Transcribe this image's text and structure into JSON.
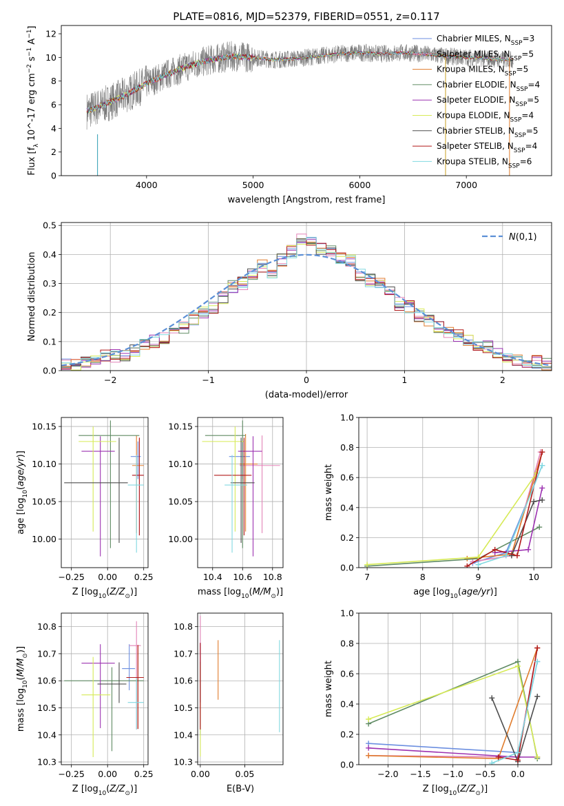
{
  "figure": {
    "title": "PLATE=0816, MJD=52379, FIBERID=0551, z=0.117"
  },
  "legend_labels": [
    "Chabrier MILES, NSSP=3",
    "Salpeter MILES, NSSP=5",
    "Kroupa MILES, NSSP=5",
    "Chabrier ELODIE, NSSP=4",
    "Salpeter ELODIE, NSSP=5",
    "Kroupa ELODIE, NSSP=4",
    "Chabrier STELIB, NSSP=5",
    "Salpeter STELIB, NSSP=4",
    "Kroupa STELIB, NSSP=6"
  ],
  "series_colors": [
    "#6b8ee0",
    "#e383b8",
    "#e07b2b",
    "#5e8a62",
    "#9b30b0",
    "#d6ea55",
    "#4d4d4d",
    "#b01818",
    "#80d8e0"
  ],
  "chart_data": [
    {
      "id": "spectrum",
      "type": "line",
      "xlabel": "wavelength [Angstrom, rest frame]",
      "ylabel": "Flux [f_λ 10^-17 erg cm^-2 s^-1 A^-1]",
      "xlim": [
        3200,
        7800
      ],
      "ylim": [
        0,
        12.7
      ],
      "xticks": [
        4000,
        5000,
        6000,
        7000
      ],
      "yticks": [
        0,
        2,
        4,
        6,
        8,
        10,
        12
      ],
      "grid": false,
      "legend_position": "right",
      "data_envelope": {
        "x": [
          3450,
          3600,
          3800,
          4000,
          4200,
          4400,
          4600,
          4800,
          5000,
          5200,
          5400,
          5600,
          5800,
          6000,
          6200,
          6400,
          6600,
          6800,
          7000,
          7200,
          7400
        ],
        "y": [
          5.5,
          6.0,
          6.8,
          7.8,
          8.6,
          9.3,
          9.8,
          10.1,
          10.0,
          9.8,
          9.9,
          10.1,
          10.3,
          10.4,
          10.3,
          10.4,
          10.3,
          10.1,
          10.0,
          9.9,
          9.8
        ]
      }
    },
    {
      "id": "residuals",
      "type": "line",
      "xlabel": "(data-model)/error",
      "ylabel": "Normed distribution",
      "xlim": [
        -2.5,
        2.5
      ],
      "ylim": [
        0,
        0.51
      ],
      "xticks": [
        -2,
        -1,
        0,
        1,
        2
      ],
      "yticks": [
        0.0,
        0.1,
        0.2,
        0.3,
        0.4,
        0.5
      ],
      "grid": true,
      "legend_position": "top-right",
      "reference_label": "N(0,1)",
      "bin_centers": [
        -2.45,
        -2.35,
        -2.25,
        -2.15,
        -2.05,
        -1.95,
        -1.85,
        -1.75,
        -1.65,
        -1.55,
        -1.45,
        -1.35,
        -1.25,
        -1.15,
        -1.05,
        -0.95,
        -0.85,
        -0.75,
        -0.65,
        -0.55,
        -0.45,
        -0.35,
        -0.25,
        -0.15,
        -0.05,
        0.05,
        0.15,
        0.25,
        0.35,
        0.45,
        0.55,
        0.65,
        0.75,
        0.85,
        0.95,
        1.05,
        1.15,
        1.25,
        1.35,
        1.45,
        1.55,
        1.65,
        1.75,
        1.85,
        1.95,
        2.05,
        2.15,
        2.25,
        2.35,
        2.45
      ],
      "bin_values": [
        0.02,
        0.02,
        0.03,
        0.04,
        0.05,
        0.05,
        0.05,
        0.07,
        0.09,
        0.1,
        0.11,
        0.13,
        0.15,
        0.18,
        0.2,
        0.22,
        0.25,
        0.29,
        0.3,
        0.33,
        0.36,
        0.34,
        0.38,
        0.41,
        0.45,
        0.44,
        0.42,
        0.41,
        0.39,
        0.38,
        0.33,
        0.31,
        0.3,
        0.27,
        0.23,
        0.22,
        0.19,
        0.17,
        0.15,
        0.13,
        0.12,
        0.1,
        0.09,
        0.08,
        0.06,
        0.05,
        0.04,
        0.03,
        0.03,
        0.02
      ]
    },
    {
      "id": "age_vs_Z",
      "type": "scatter",
      "xlabel": "Z [log10(Z/Z⊙)]",
      "ylabel": "age  [log10(age/yr)]",
      "xlim": [
        -0.32,
        0.28
      ],
      "ylim": [
        9.962,
        10.162
      ],
      "xticks": [
        -0.25,
        0.0,
        0.25
      ],
      "xticklabels": [
        "−0.25",
        "0.00",
        "0.25"
      ],
      "yticks": [
        10.0,
        10.05,
        10.1,
        10.15
      ],
      "yticklabels": [
        "10.00",
        "10.05",
        "10.10",
        "10.15"
      ],
      "grid": true,
      "points": [
        {
          "x": 0.21,
          "y": 10.11,
          "xerr": [
            0.05,
            0.02
          ],
          "yerr": [
            0.03,
            0.02
          ]
        },
        {
          "x": 0.22,
          "y": 10.085,
          "xerr": [
            0.05,
            0.03
          ],
          "yerr": [
            0.08,
            0.05
          ]
        },
        {
          "x": 0.2,
          "y": 10.098,
          "xerr": [
            0.03,
            0.05
          ],
          "yerr": [
            0.09,
            0.04
          ]
        },
        {
          "x": 0.02,
          "y": 10.138,
          "xerr": [
            0.22,
            0.2
          ],
          "yerr": [
            0.15,
            0.02
          ]
        },
        {
          "x": -0.05,
          "y": 10.117,
          "xerr": [
            0.13,
            0.1
          ],
          "yerr": [
            0.14,
            0.02
          ]
        },
        {
          "x": -0.1,
          "y": 10.13,
          "xerr": [
            0.1,
            0.16
          ],
          "yerr": [
            0.12,
            0.02
          ]
        },
        {
          "x": 0.08,
          "y": 10.075,
          "xerr": [
            0.38,
            0.06
          ],
          "yerr": [
            0.08,
            0.06
          ]
        },
        {
          "x": 0.22,
          "y": 10.085,
          "xerr": [
            0.05,
            0.03
          ],
          "yerr": [
            0.08,
            0.05
          ]
        },
        {
          "x": 0.2,
          "y": 10.072,
          "xerr": [
            0.06,
            0.05
          ],
          "yerr": [
            0.09,
            0.04
          ]
        }
      ]
    },
    {
      "id": "age_vs_mass",
      "type": "scatter",
      "xlabel": "mass [log10(M/M⊙)]",
      "ylabel": "",
      "xlim": [
        10.3,
        10.87
      ],
      "ylim": [
        9.962,
        10.162
      ],
      "xticks": [
        10.4,
        10.6,
        10.8
      ],
      "xticklabels": [
        "10.4",
        "10.6",
        "10.8"
      ],
      "yticks": [
        10.0,
        10.05,
        10.1,
        10.15
      ],
      "yticklabels": [
        "10.00",
        "10.05",
        "10.10",
        "10.15"
      ],
      "grid": true,
      "points": [
        {
          "x": 10.6,
          "y": 10.11,
          "xerr": [
            0.09,
            0.05
          ],
          "yerr": [
            0.03,
            0.02
          ]
        },
        {
          "x": 10.73,
          "y": 10.098,
          "xerr": [
            0.15,
            0.12
          ],
          "yerr": [
            0.09,
            0.04
          ]
        },
        {
          "x": 10.62,
          "y": 10.1,
          "xerr": [
            0.04,
            0.08
          ],
          "yerr": [
            0.09,
            0.04
          ]
        },
        {
          "x": 10.6,
          "y": 10.138,
          "xerr": [
            0.25,
            0.02
          ],
          "yerr": [
            0.15,
            0.02
          ]
        },
        {
          "x": 10.67,
          "y": 10.117,
          "xerr": [
            0.1,
            0.06
          ],
          "yerr": [
            0.14,
            0.02
          ]
        },
        {
          "x": 10.55,
          "y": 10.13,
          "xerr": [
            0.22,
            0.06
          ],
          "yerr": [
            0.12,
            0.02
          ]
        },
        {
          "x": 10.59,
          "y": 10.075,
          "xerr": [
            0.07,
            0.09
          ],
          "yerr": [
            0.08,
            0.06
          ]
        },
        {
          "x": 10.61,
          "y": 10.085,
          "xerr": [
            0.2,
            0.05
          ],
          "yerr": [
            0.08,
            0.05
          ]
        },
        {
          "x": 10.53,
          "y": 10.072,
          "xerr": [
            0.05,
            0.1
          ],
          "yerr": [
            0.09,
            0.04
          ]
        }
      ]
    },
    {
      "id": "weight_vs_age",
      "type": "line",
      "xlabel": "age  [log10(age/yr)]",
      "ylabel": "mass weight",
      "xlim": [
        6.85,
        10.32
      ],
      "ylim": [
        0,
        1.0
      ],
      "xticks": [
        7,
        8,
        9,
        10
      ],
      "yticks": [
        0.0,
        0.2,
        0.4,
        0.6,
        0.8,
        1.0
      ],
      "grid": true,
      "series_points": [
        {
          "x": [
            8.9,
            9.5,
            10.15
          ],
          "y": [
            0.03,
            0.1,
            0.68
          ]
        },
        {
          "x": [
            8.9,
            9.6,
            10.12
          ],
          "y": [
            0.04,
            0.08,
            0.77
          ]
        },
        {
          "x": [
            8.8,
            9.6,
            10.15
          ],
          "y": [
            0.06,
            0.09,
            0.77
          ]
        },
        {
          "x": [
            7.0,
            9.0,
            10.1
          ],
          "y": [
            0.01,
            0.06,
            0.27
          ]
        },
        {
          "x": [
            9.3,
            9.9,
            10.15
          ],
          "y": [
            0.1,
            0.12,
            0.53
          ]
        },
        {
          "x": [
            7.0,
            9.0,
            10.05
          ],
          "y": [
            0.02,
            0.07,
            0.63
          ]
        },
        {
          "x": [
            9.6,
            10.0,
            10.15
          ],
          "y": [
            0.08,
            0.44,
            0.45
          ]
        },
        {
          "x": [
            8.8,
            9.3,
            9.7,
            10.15
          ],
          "y": [
            0.01,
            0.12,
            0.08,
            0.77
          ]
        },
        {
          "x": [
            9.0,
            9.5,
            10.15
          ],
          "y": [
            0.02,
            0.08,
            0.68
          ]
        }
      ]
    },
    {
      "id": "mass_vs_Z",
      "type": "scatter",
      "xlabel": "Z [log10(Z/Z⊙)]",
      "ylabel": "mass [log10(M/M⊙)]",
      "xlim": [
        -0.32,
        0.28
      ],
      "ylim": [
        10.29,
        10.85
      ],
      "xticks": [
        -0.25,
        0.0,
        0.25
      ],
      "xticklabels": [
        "−0.25",
        "0.00",
        "0.25"
      ],
      "yticks": [
        10.3,
        10.4,
        10.5,
        10.6,
        10.7,
        10.8
      ],
      "yticklabels": [
        "10.3",
        "10.4",
        "10.5",
        "10.6",
        "10.7",
        "10.8"
      ],
      "grid": true,
      "points": [
        {
          "x": 0.15,
          "y": 10.645,
          "xerr": [
            0.05,
            0.04
          ],
          "yerr": [
            0.08,
            0.09
          ]
        },
        {
          "x": 0.2,
          "y": 10.73,
          "xerr": [
            0.05,
            0.03
          ],
          "yerr": [
            0.31,
            0.09
          ]
        },
        {
          "x": 0.21,
          "y": 10.612,
          "xerr": [
            0.08,
            0.04
          ],
          "yerr": [
            0.19,
            0.12
          ]
        },
        {
          "x": 0.03,
          "y": 10.6,
          "xerr": [
            0.33,
            0.22
          ],
          "yerr": [
            0.26,
            0.05
          ]
        },
        {
          "x": -0.05,
          "y": 10.665,
          "xerr": [
            0.13,
            0.1
          ],
          "yerr": [
            0.24,
            0.07
          ]
        },
        {
          "x": -0.1,
          "y": 10.548,
          "xerr": [
            0.08,
            0.12
          ],
          "yerr": [
            0.23,
            0.14
          ]
        },
        {
          "x": 0.08,
          "y": 10.588,
          "xerr": [
            0.15,
            0.05
          ],
          "yerr": [
            0.07,
            0.08
          ]
        },
        {
          "x": 0.21,
          "y": 10.612,
          "xerr": [
            0.08,
            0.04
          ],
          "yerr": [
            0.19,
            0.12
          ]
        },
        {
          "x": 0.2,
          "y": 10.52,
          "xerr": [
            0.06,
            0.05
          ],
          "yerr": [
            0.1,
            0.09
          ]
        }
      ]
    },
    {
      "id": "mass_vs_EBV",
      "type": "scatter",
      "xlabel": "E(B-V)",
      "ylabel": "",
      "xlim": [
        -0.003,
        0.093
      ],
      "ylim": [
        10.29,
        10.85
      ],
      "xticks": [
        0.0,
        0.05
      ],
      "xticklabels": [
        "0.00",
        "0.05"
      ],
      "yticks": [
        10.3,
        10.4,
        10.5,
        10.6,
        10.7,
        10.8
      ],
      "yticklabels": [
        "10.3",
        "10.4",
        "10.5",
        "10.6",
        "10.7",
        "10.8"
      ],
      "grid": true,
      "points": [
        {
          "x": 0.0,
          "y": 10.64,
          "xerr": [
            0,
            0
          ],
          "yerr": [
            0.24,
            0.1
          ]
        },
        {
          "x": 0.0,
          "y": 10.73,
          "xerr": [
            0,
            0
          ],
          "yerr": [
            0.25,
            0.11
          ]
        },
        {
          "x": 0.02,
          "y": 10.64,
          "xerr": [
            0,
            0
          ],
          "yerr": [
            0.11,
            0.11
          ]
        },
        {
          "x": 0.0,
          "y": 10.6,
          "xerr": [
            0,
            0
          ],
          "yerr": [
            0.18,
            0.05
          ]
        },
        {
          "x": 0.0,
          "y": 10.67,
          "xerr": [
            0,
            0
          ],
          "yerr": [
            0.24,
            0.07
          ]
        },
        {
          "x": 0.0,
          "y": 10.54,
          "xerr": [
            0,
            0
          ],
          "yerr": [
            0.22,
            0.12
          ]
        },
        {
          "x": 0.0,
          "y": 10.59,
          "xerr": [
            0,
            0
          ],
          "yerr": [
            0.07,
            0.08
          ]
        },
        {
          "x": 0.0,
          "y": 10.6,
          "xerr": [
            0,
            0
          ],
          "yerr": [
            0.18,
            0.14
          ]
        },
        {
          "x": 0.089,
          "y": 10.58,
          "xerr": [
            0,
            0
          ],
          "yerr": [
            0.17,
            0.17
          ]
        }
      ]
    },
    {
      "id": "weight_vs_Z",
      "type": "line",
      "xlabel": "Z [log10(Z/Z⊙)]",
      "ylabel": "mass weight",
      "xlim": [
        -2.45,
        0.52
      ],
      "ylim": [
        0,
        1.0
      ],
      "xticks": [
        -2.0,
        -1.5,
        -1.0,
        -0.5,
        0.0
      ],
      "xticklabels": [
        "−2.0",
        "−1.5",
        "−1.0",
        "−0.5",
        "0.0"
      ],
      "yticks": [
        0.0,
        0.2,
        0.4,
        0.6,
        0.8,
        1.0
      ],
      "grid": true,
      "series_points": [
        {
          "x": [
            -2.3,
            0.0,
            0.3
          ],
          "y": [
            0.14,
            0.08,
            0.68
          ]
        },
        {
          "x": [
            -2.3,
            0.0,
            0.3
          ],
          "y": [
            0.06,
            0.05,
            0.77
          ]
        },
        {
          "x": [
            -2.3,
            -0.3,
            0.3
          ],
          "y": [
            0.06,
            0.04,
            0.77
          ]
        },
        {
          "x": [
            -2.3,
            0.0,
            0.3
          ],
          "y": [
            0.27,
            0.68,
            0.04
          ]
        },
        {
          "x": [
            -2.3,
            0.0,
            0.3
          ],
          "y": [
            0.11,
            0.05,
            0.05
          ]
        },
        {
          "x": [
            -2.3,
            0.0,
            0.3
          ],
          "y": [
            0.3,
            0.65,
            0.05
          ]
        },
        {
          "x": [
            -0.4,
            0.0,
            0.3
          ],
          "y": [
            0.44,
            0.02,
            0.45
          ]
        },
        {
          "x": [
            -0.3,
            0.0,
            0.3
          ],
          "y": [
            0.05,
            0.03,
            0.77
          ]
        },
        {
          "x": [
            -0.4,
            0.0,
            0.3
          ],
          "y": [
            0.01,
            0.08,
            0.68
          ]
        }
      ]
    }
  ]
}
